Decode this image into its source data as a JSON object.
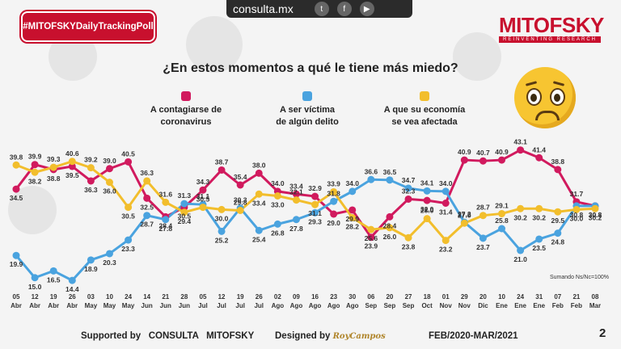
{
  "header": {
    "hashtag": "#MITOFSKYDailyTrackingPoll",
    "site": "consulta.mx",
    "social_icons": [
      "twitter-icon",
      "facebook-icon",
      "youtube-icon"
    ],
    "brand": "MITOFSKY",
    "brand_sub": "REINVENTING RESEARCH"
  },
  "footer": {
    "supported": "Supported by",
    "consulta": "CONSULTA",
    "mitofsky": "MITOFSKY",
    "designed": "Designed by",
    "signature": "RoyCampos",
    "period": "FEB/2020-MAR/2021",
    "page": "2"
  },
  "note": "Sumando Ns/Nc=100%",
  "chart_data": {
    "type": "line",
    "title": "¿En estos momentos a qué le tiene más miedo?",
    "categories": [
      [
        "05",
        "Abr"
      ],
      [
        "12",
        "Abr"
      ],
      [
        "19",
        "Abr"
      ],
      [
        "26",
        "Abr"
      ],
      [
        "03",
        "May"
      ],
      [
        "10",
        "May"
      ],
      [
        "24",
        "May"
      ],
      [
        "14",
        "Jun"
      ],
      [
        "21",
        "Jun"
      ],
      [
        "28",
        "Jun"
      ],
      [
        "05",
        "Jul"
      ],
      [
        "12",
        "Jul"
      ],
      [
        "19",
        "Jul"
      ],
      [
        "26",
        "Jul"
      ],
      [
        "02",
        "Ago"
      ],
      [
        "09",
        "Ago"
      ],
      [
        "16",
        "Ago"
      ],
      [
        "23",
        "Ago"
      ],
      [
        "30",
        "Ago"
      ],
      [
        "06",
        "Sep"
      ],
      [
        "20",
        "Sep"
      ],
      [
        "27",
        "Sep"
      ],
      [
        "18",
        "Oct"
      ],
      [
        "01",
        "Nov"
      ],
      [
        "29",
        "Nov"
      ],
      [
        "20",
        "Dic"
      ],
      [
        "10",
        "Ene"
      ],
      [
        "24",
        "Ene"
      ],
      [
        "31",
        "Ene"
      ],
      [
        "07",
        "Feb"
      ],
      [
        "21",
        "Feb"
      ],
      [
        "08",
        "Mar"
      ]
    ],
    "ylim": [
      13,
      45
    ],
    "series": [
      {
        "name": "A contagiarse de coronavirus",
        "legend": [
          "A contagiarse de",
          "coronavirus"
        ],
        "color": "#d11a5e",
        "values": [
          34.5,
          39.9,
          38.8,
          39.5,
          36.3,
          39.0,
          40.5,
          32.5,
          28.4,
          30.5,
          34.3,
          38.7,
          35.4,
          38.0,
          34.0,
          33.4,
          32.9,
          29.0,
          29.9,
          23.9,
          28.4,
          32.3,
          32.0,
          31.4,
          40.9,
          40.7,
          40.9,
          43.1,
          41.4,
          38.8,
          31.7,
          30.8
        ],
        "label_pos": [
          "b",
          "a",
          "b",
          "b",
          "b",
          "a",
          "a",
          "b",
          "b",
          "b",
          "a",
          "a",
          "a",
          "a",
          "a",
          "a",
          "a",
          "b",
          "b",
          "b",
          "b",
          "a",
          "b",
          "b",
          "a",
          "a",
          "a",
          "a",
          "a",
          "a",
          "a",
          "b"
        ]
      },
      {
        "name": "A ser víctima de algún delito",
        "legend": [
          "A ser víctima",
          "de algún delito"
        ],
        "color": "#4aa3df",
        "values": [
          19.9,
          15.0,
          16.5,
          14.4,
          18.9,
          20.3,
          23.3,
          28.7,
          27.8,
          31.3,
          31.1,
          25.2,
          30.3,
          25.4,
          26.8,
          27.8,
          29.3,
          31.8,
          34.0,
          36.6,
          36.5,
          34.7,
          34.1,
          34.0,
          27.2,
          23.7,
          25.8,
          21.0,
          23.5,
          24.8,
          30.8,
          30.8
        ],
        "label_pos": [
          "b",
          "b",
          "b",
          "b",
          "b",
          "b",
          "b",
          "b",
          "b",
          "a",
          "a",
          "b",
          "a",
          "b",
          "b",
          "b",
          "b",
          "a",
          "a",
          "a",
          "a",
          "a",
          "a",
          "a",
          "a",
          "b",
          "a",
          "b",
          "b",
          "b",
          "b",
          "b"
        ]
      },
      {
        "name": "A que su economía se vea afectada",
        "legend": [
          "A que su economía",
          "se vea afectada"
        ],
        "color": "#f2be2c",
        "values": [
          39.8,
          38.2,
          39.3,
          40.6,
          39.2,
          36.0,
          30.5,
          36.3,
          31.6,
          29.4,
          30.5,
          30.0,
          29.8,
          33.4,
          33.0,
          32.1,
          31.1,
          33.9,
          28.2,
          25.6,
          26.0,
          23.8,
          28.0,
          23.2,
          27.0,
          28.7,
          29.1,
          30.2,
          30.2,
          29.5,
          30.0,
          30.2
        ],
        "label_pos": [
          "a",
          "b",
          "a",
          "a",
          "a",
          "b",
          "b",
          "a",
          "a",
          "b",
          "a",
          "b",
          "a",
          "b",
          "b",
          "a",
          "b",
          "a",
          "b",
          "b",
          "b",
          "b",
          "a",
          "b",
          "a",
          "a",
          "a",
          "b",
          "b",
          "b",
          "b",
          "b"
        ]
      }
    ]
  }
}
